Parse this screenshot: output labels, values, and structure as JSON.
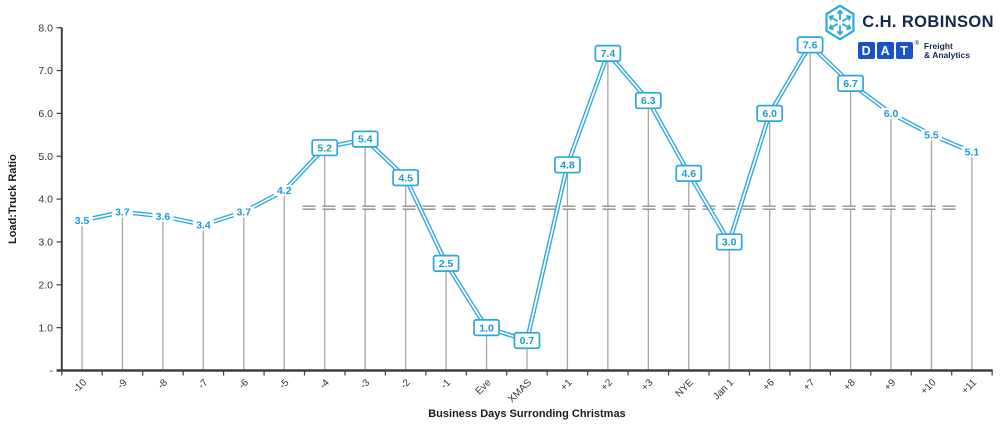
{
  "logos": {
    "chr": {
      "name": "C.H. ROBINSON",
      "icon": "hexagon-snowflake-icon",
      "icon_color": "#2BA7E0",
      "text_color": "#13294B"
    },
    "dat": {
      "letters": [
        "D",
        "A",
        "T"
      ],
      "reg": "®",
      "tagline_line1": "Freight",
      "tagline_line2": "& Analytics",
      "box_color": "#1B52C8",
      "text_color": "#13294B"
    }
  },
  "chart_data": {
    "type": "line",
    "title": "",
    "xlabel": "Business Days Surronding Christmas",
    "ylabel": "Load:Truck Ratio",
    "categories": [
      "-10",
      "-9",
      "-8",
      "-7",
      "-6",
      "-5",
      "-4",
      "-3",
      "-2",
      "-1",
      "Eve",
      "XMAS",
      "+1",
      "+2",
      "+3",
      "NYE",
      "Jan 1",
      "+6",
      "+7",
      "+8",
      "+9",
      "+10",
      "+11"
    ],
    "series": [
      {
        "name": "Load:Truck Ratio",
        "values": [
          3.5,
          3.7,
          3.6,
          3.4,
          3.7,
          4.2,
          5.2,
          5.4,
          4.5,
          2.5,
          1.0,
          0.7,
          4.8,
          7.4,
          6.3,
          4.6,
          3.0,
          6.0,
          7.6,
          6.7,
          6.0,
          5.5,
          5.1
        ]
      }
    ],
    "point_labels": [
      "3.5",
      "3.7",
      "3.6",
      "3.4",
      "3.7",
      "4.2",
      "5.2",
      "5.4",
      "4.5",
      "2.5",
      "1.0",
      "0.7",
      "4.8",
      "7.4",
      "6.3",
      "4.6",
      "3.0",
      "6.0",
      "7.6",
      "6.7",
      "6.0",
      "5.5",
      "5.1"
    ],
    "boxed_labels": [
      false,
      false,
      false,
      false,
      false,
      false,
      true,
      true,
      true,
      true,
      true,
      true,
      true,
      true,
      true,
      true,
      true,
      true,
      true,
      true,
      false,
      false,
      false
    ],
    "y_ticks": [
      {
        "v": 8,
        "label": "8.0"
      },
      {
        "v": 7,
        "label": "7.0"
      },
      {
        "v": 6,
        "label": "6.0"
      },
      {
        "v": 5,
        "label": "5.0"
      },
      {
        "v": 4,
        "label": "4.0"
      },
      {
        "v": 3,
        "label": "3.0"
      },
      {
        "v": 2,
        "label": "2.0"
      },
      {
        "v": 1,
        "label": "1.0"
      },
      {
        "v": 0,
        "label": "-"
      }
    ],
    "ylim": [
      0,
      8
    ],
    "grid": false,
    "legend": "none",
    "baseline": {
      "value": 3.8,
      "style": "double-dashed",
      "from_index": 5.45,
      "to_index": 21.75
    },
    "drop_lines": true,
    "line_style": "double-line",
    "colors": {
      "line": "#2BA7E0",
      "label_text": "#1C9AD6",
      "label_box_border": "#2BA7E0",
      "dropline": "#A6A6A6",
      "baseline": "#8F8F8F",
      "axis": "#3F3F3F",
      "tick_text": "#333333",
      "title_text": "#1A1A1A"
    }
  }
}
